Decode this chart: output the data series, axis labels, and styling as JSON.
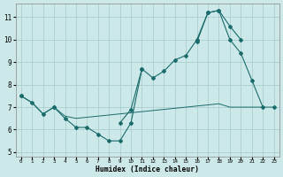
{
  "xlabel": "Humidex (Indice chaleur)",
  "bg_color": "#cde8e8",
  "grid_color": "#aacfcf",
  "line_color": "#1a6b6b",
  "line1_y": [
    7.5,
    7.2,
    6.7,
    7.0,
    6.5,
    6.1,
    6.1,
    5.8,
    5.5,
    5.5,
    6.3,
    8.7,
    8.3,
    8.6,
    9.1,
    9.3,
    10.0,
    11.2,
    11.3,
    10.0,
    9.4,
    8.2,
    7.0,
    null
  ],
  "line2_y": [
    7.5,
    null,
    null,
    7.0,
    null,
    null,
    null,
    null,
    null,
    6.3,
    6.9,
    8.7,
    null,
    null,
    null,
    null,
    9.9,
    11.2,
    11.3,
    10.6,
    10.0,
    null,
    null,
    7.0
  ],
  "line3_y": [
    7.5,
    7.2,
    6.7,
    7.0,
    6.6,
    6.5,
    6.55,
    6.6,
    6.65,
    6.7,
    6.75,
    6.8,
    6.85,
    6.9,
    6.95,
    7.0,
    7.05,
    7.1,
    7.15,
    7.0,
    7.0,
    7.0,
    7.0,
    7.0
  ],
  "xlim": [
    -0.5,
    23.5
  ],
  "ylim": [
    4.8,
    11.6
  ],
  "yticks": [
    5,
    6,
    7,
    8,
    9,
    10,
    11
  ],
  "xticks": [
    0,
    1,
    2,
    3,
    4,
    5,
    6,
    7,
    8,
    9,
    10,
    11,
    12,
    13,
    14,
    15,
    16,
    17,
    18,
    19,
    20,
    21,
    22,
    23
  ]
}
